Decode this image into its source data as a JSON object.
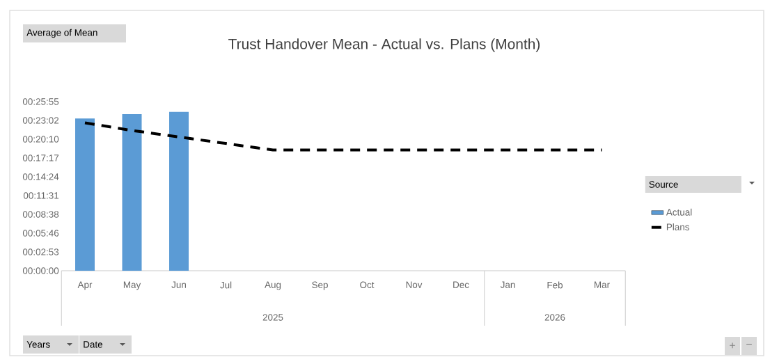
{
  "chart_data": {
    "type": "bar",
    "title": "Trust Handover Mean - Actual vs. Plans (Month)",
    "categories": [
      "Apr",
      "May",
      "Jun",
      "Jul",
      "Aug",
      "Sep",
      "Oct",
      "Nov",
      "Dec",
      "Jan",
      "Feb",
      "Mar"
    ],
    "series": [
      {
        "name": "Actual",
        "color": "#5b9bd5",
        "values": [
          1400,
          1440,
          1460,
          null,
          null,
          null,
          null,
          null,
          null,
          null,
          null,
          null
        ]
      },
      {
        "name": "Plans",
        "type": "line",
        "color": "#000000",
        "values": [
          1360,
          1290,
          1230,
          1170,
          1110,
          1110,
          1110,
          1110,
          1110,
          1110,
          1110,
          1110
        ]
      }
    ],
    "ylim": [
      0,
      1555.2
    ],
    "yticks": [
      {
        "value": 0,
        "label": "00:00:00"
      },
      {
        "value": 172.8,
        "label": "00:02:53"
      },
      {
        "value": 345.6,
        "label": "00:05:46"
      },
      {
        "value": 518.4,
        "label": "00:08:38"
      },
      {
        "value": 691.2,
        "label": "00:11:31"
      },
      {
        "value": 864,
        "label": "00:14:24"
      },
      {
        "value": 1036.8,
        "label": "00:17:17"
      },
      {
        "value": 1209.6,
        "label": "00:20:10"
      },
      {
        "value": 1382.4,
        "label": "00:23:02"
      },
      {
        "value": 1555.2,
        "label": "00:25:55"
      }
    ],
    "line_style": "dashed",
    "legend": "right",
    "legend_title": "Source",
    "annotations": [
      "Average of Mean",
      "Years",
      "Date",
      "+",
      "−",
      "2025",
      "2026"
    ]
  }
}
